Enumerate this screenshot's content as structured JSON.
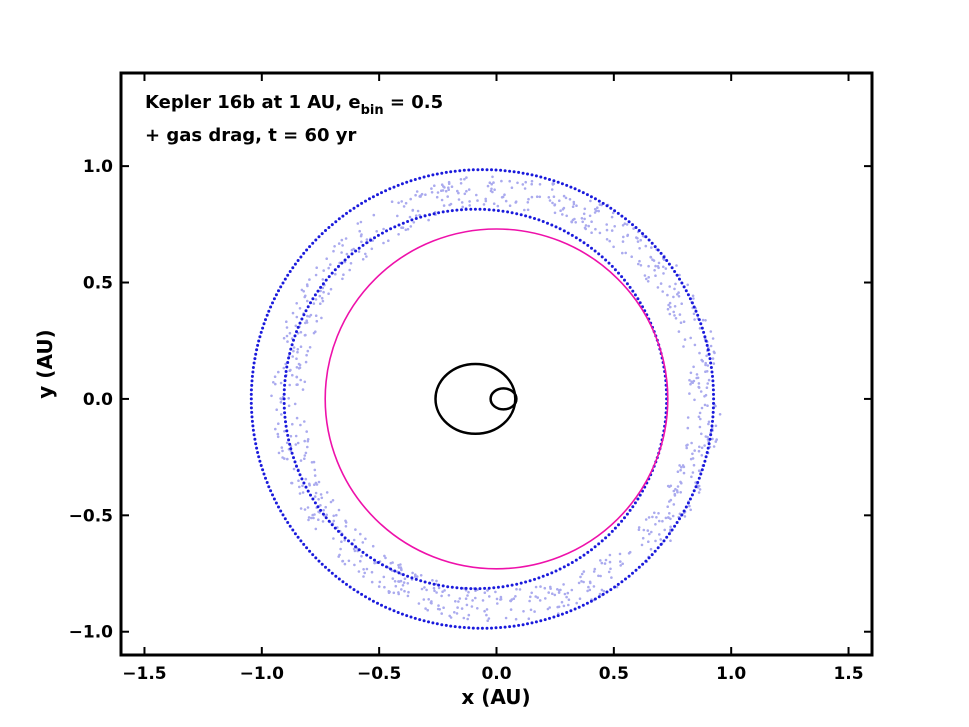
{
  "chart_data": {
    "type": "scatter",
    "xlabel": "x (AU)",
    "ylabel": "y (AU)",
    "xlim": [
      -1.6,
      1.6
    ],
    "ylim": [
      -1.1,
      1.4
    ],
    "xticks": [
      -1.5,
      -1.0,
      -0.5,
      0.0,
      0.5,
      1.0,
      1.5
    ],
    "xtick_labels": [
      "−1.5",
      "−1.0",
      "−0.5",
      "0.0",
      "0.5",
      "1.0",
      "1.5"
    ],
    "yticks": [
      -1.0,
      -0.5,
      0.0,
      0.5,
      1.0
    ],
    "ytick_labels": [
      "−1.0",
      "−0.5",
      "0.0",
      "0.5",
      "1.0"
    ],
    "grid": false,
    "annotation": {
      "line1_main": "Kepler 16b at 1 AU, e",
      "line1_sub": "bin",
      "line1_end": " = 0.5",
      "line2": "+ gas drag, t = 60 yr"
    },
    "series": [
      {
        "kind": "ring-particles",
        "color": "#aaaaee",
        "center": [
          0.0,
          0.0
        ],
        "r_inner": 0.82,
        "r_outer": 0.96,
        "count": 900
      },
      {
        "kind": "ring-edge-dots",
        "color": "#1a1adc",
        "center": [
          -0.06,
          0.0
        ],
        "radius": 0.985,
        "count": 320
      },
      {
        "kind": "ring-edge-dots",
        "color": "#1a1adc",
        "center": [
          -0.09,
          0.0
        ],
        "radius": 0.815,
        "count": 260
      },
      {
        "kind": "orbit",
        "color": "#ee11aa",
        "center": [
          0.0,
          0.0
        ],
        "radius": 0.73
      },
      {
        "kind": "orbit",
        "color": "#000000",
        "center": [
          -0.09,
          0.0
        ],
        "rx": 0.17,
        "ry": 0.15
      },
      {
        "kind": "orbit",
        "color": "#000000",
        "center": [
          0.03,
          0.0
        ],
        "rx": 0.055,
        "ry": 0.045
      }
    ]
  }
}
